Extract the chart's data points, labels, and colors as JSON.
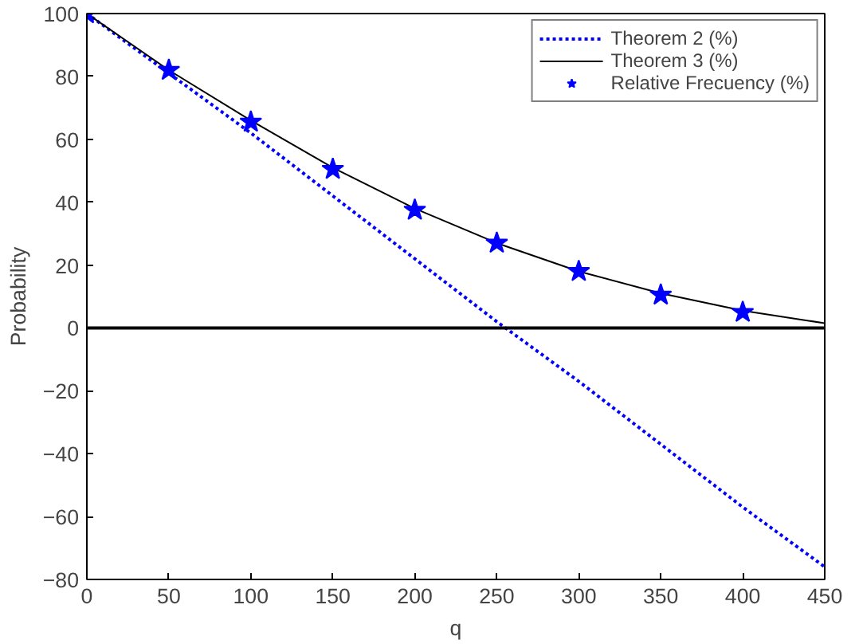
{
  "chart_data": {
    "type": "line",
    "xlabel": "q",
    "ylabel": "Probability",
    "x": [
      0,
      50,
      100,
      150,
      200,
      250,
      300,
      350,
      400,
      450
    ],
    "xlim": [
      0,
      450
    ],
    "xticks": [
      0,
      50,
      100,
      150,
      200,
      250,
      300,
      350,
      400,
      450
    ],
    "ylim": [
      -80,
      100
    ],
    "yticks": [
      -80,
      -60,
      -40,
      -20,
      0,
      20,
      40,
      60,
      80,
      100
    ],
    "grid": false,
    "legend": "top right",
    "ref_lines": [
      {
        "axis": "y",
        "value": 0,
        "color": "#000000"
      }
    ],
    "series": [
      {
        "name": "Theorem 2 (%)",
        "line_style": "dotted",
        "marker": "none",
        "color": "#0000ff",
        "values": [
          100,
          81,
          62,
          42,
          22,
          2,
          -17,
          -37,
          -57,
          -76
        ]
      },
      {
        "name": "Theorem 3 (%)",
        "line_style": "solid",
        "marker": "none",
        "color": "#000000",
        "values": [
          100,
          82,
          66,
          51,
          38,
          27,
          18,
          11,
          5.5,
          1.5
        ]
      },
      {
        "name": "Relative Frecuency (%)",
        "type": "scatter",
        "marker": "star",
        "color": "#0000ff",
        "x": [
          0,
          50,
          100,
          150,
          200,
          250,
          300,
          350,
          400
        ],
        "values": [
          100,
          82,
          65.5,
          50.5,
          37.5,
          27,
          18,
          10.5,
          5
        ]
      }
    ]
  }
}
